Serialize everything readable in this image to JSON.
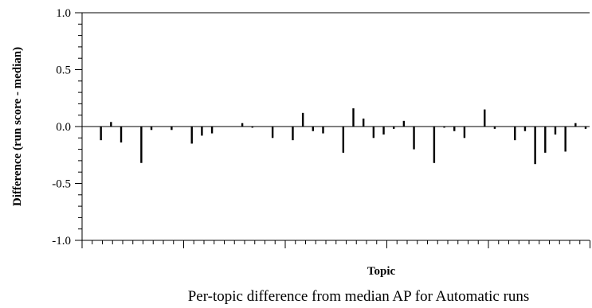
{
  "chart_data": {
    "type": "bar",
    "title": "",
    "caption": "Per-topic difference from median AP for Automatic runs",
    "xlabel": "Topic",
    "ylabel": "Difference (run score - median)",
    "ylim": [
      -1.0,
      1.0
    ],
    "y_ticks": [
      "-1.0",
      "-0.5",
      "0.0",
      "0.5",
      "1.0"
    ],
    "x_tick_labels_visible": false,
    "grid": false,
    "legend": "none",
    "bar_color": "#000000",
    "x": [
      1,
      2,
      3,
      4,
      5,
      6,
      7,
      8,
      9,
      10,
      11,
      12,
      13,
      14,
      15,
      16,
      17,
      18,
      19,
      20,
      21,
      22,
      23,
      24,
      25,
      26,
      27,
      28,
      29,
      30,
      31,
      32,
      33,
      34,
      35,
      36,
      37,
      38,
      39,
      40,
      41,
      42,
      43,
      44,
      45,
      46,
      47,
      48,
      49,
      50
    ],
    "values": [
      0.0,
      -0.12,
      0.04,
      -0.14,
      0.0,
      -0.32,
      -0.03,
      0.0,
      -0.03,
      0.0,
      -0.15,
      -0.08,
      -0.06,
      0.0,
      0.0,
      0.03,
      -0.01,
      0.0,
      -0.1,
      0.0,
      -0.12,
      0.12,
      -0.04,
      -0.06,
      0.0,
      -0.23,
      0.16,
      0.07,
      -0.1,
      -0.07,
      -0.02,
      0.05,
      -0.2,
      0.0,
      -0.32,
      -0.01,
      -0.04,
      -0.1,
      0.0,
      0.15,
      -0.02,
      0.0,
      -0.12,
      -0.04,
      -0.33,
      -0.23,
      -0.07,
      -0.22,
      0.03,
      -0.02
    ]
  }
}
